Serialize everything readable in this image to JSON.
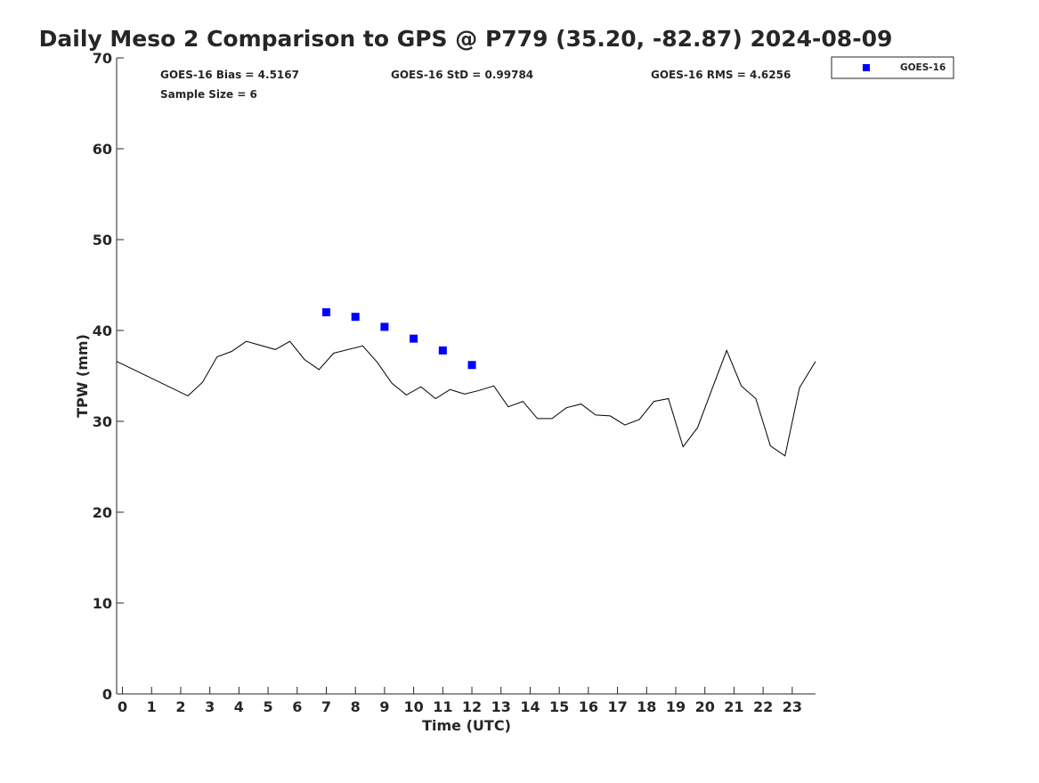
{
  "chart_data": {
    "type": "line",
    "title": "Daily Meso 2 Comparison to GPS @ P779 (35.20, -82.87) 2024-08-09",
    "xlabel": "Time (UTC)",
    "ylabel": "TPW (mm)",
    "xlim": [
      -0.2,
      23.8
    ],
    "ylim": [
      0,
      70
    ],
    "xticks": [
      0,
      1,
      2,
      3,
      4,
      5,
      6,
      7,
      8,
      9,
      10,
      11,
      12,
      13,
      14,
      15,
      16,
      17,
      18,
      19,
      20,
      21,
      22,
      23
    ],
    "yticks": [
      0,
      10,
      20,
      30,
      40,
      50,
      60,
      70
    ],
    "grid": false,
    "legend_position": "top-right",
    "annotations": [
      "GOES-16 Bias = 4.5167",
      "GOES-16 StD = 0.99784",
      "GOES-16 RMS = 4.6256",
      "Sample Size = 6"
    ],
    "series": [
      {
        "kind": "line",
        "color": "#000000",
        "x": [
          -0.2,
          2.25,
          2.75,
          3.25,
          3.75,
          4.25,
          5.25,
          5.75,
          6.25,
          6.75,
          7.25,
          8.25,
          8.75,
          9.25,
          9.75,
          10.25,
          10.75,
          11.25,
          11.75,
          12.25,
          12.75,
          13.25,
          13.75,
          14.25,
          14.75,
          15.25,
          15.75,
          16.25,
          16.75,
          17.25,
          17.75,
          18.25,
          18.75,
          19.25,
          19.75,
          20.25,
          20.75,
          21.25,
          21.75,
          22.25,
          22.75,
          23.25,
          23.8
        ],
        "y": [
          36.6,
          32.8,
          34.3,
          37.1,
          37.7,
          38.8,
          37.9,
          38.8,
          36.8,
          35.7,
          37.5,
          38.3,
          36.5,
          34.2,
          32.9,
          33.8,
          32.5,
          33.5,
          33.0,
          33.4,
          33.9,
          31.6,
          32.2,
          30.3,
          30.3,
          31.5,
          31.9,
          30.7,
          30.6,
          29.6,
          30.2,
          32.2,
          32.5,
          27.2,
          29.3,
          33.6,
          37.8,
          33.9,
          32.5,
          27.3,
          26.2,
          33.7,
          36.6
        ]
      },
      {
        "kind": "scatter",
        "name": "GOES-16",
        "color": "#0000ff",
        "x": [
          7,
          8,
          9,
          10,
          11,
          12
        ],
        "y": [
          42.0,
          41.5,
          40.4,
          39.1,
          37.8,
          36.2
        ]
      }
    ]
  }
}
